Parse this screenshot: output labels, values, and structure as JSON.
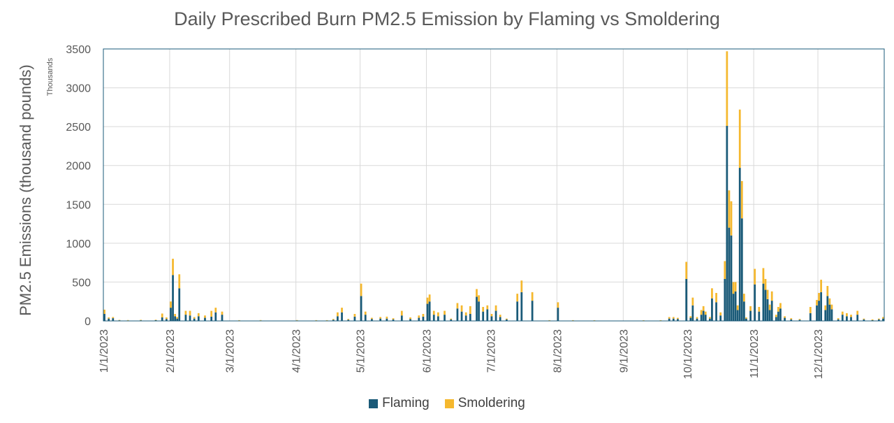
{
  "chart_data": {
    "type": "bar",
    "stacked": true,
    "title": "Daily Prescribed Burn PM2.5 Emission by Flaming vs Smoldering",
    "ylabel": "PM2.5 Emissions (thousand pounds)",
    "ylabel_units": "Thousands",
    "xlabel": "",
    "ylim": [
      0,
      3500
    ],
    "yticks": [
      0,
      500,
      1000,
      1500,
      2000,
      2500,
      3000,
      3500
    ],
    "xlim": [
      "2023-01-01",
      "2023-12-31"
    ],
    "xticks": [
      "1/1/2023",
      "2/1/2023",
      "3/1/2023",
      "4/1/2023",
      "5/1/2023",
      "6/1/2023",
      "7/1/2023",
      "8/1/2023",
      "9/1/2023",
      "10/1/2023",
      "11/1/2023",
      "12/1/2023"
    ],
    "grid": true,
    "legend_position": "bottom",
    "series": [
      {
        "name": "Flaming",
        "color": "#1a5a78",
        "points": [
          [
            "2023-01-01",
            90
          ],
          [
            "2023-01-03",
            30
          ],
          [
            "2023-01-05",
            35
          ],
          [
            "2023-01-08",
            8
          ],
          [
            "2023-01-12",
            6
          ],
          [
            "2023-01-18",
            8
          ],
          [
            "2023-01-25",
            10
          ],
          [
            "2023-01-28",
            45
          ],
          [
            "2023-01-30",
            25
          ],
          [
            "2023-02-01",
            170
          ],
          [
            "2023-02-02",
            590
          ],
          [
            "2023-02-03",
            60
          ],
          [
            "2023-02-04",
            30
          ],
          [
            "2023-02-05",
            420
          ],
          [
            "2023-02-08",
            80
          ],
          [
            "2023-02-10",
            70
          ],
          [
            "2023-02-12",
            30
          ],
          [
            "2023-02-14",
            60
          ],
          [
            "2023-02-17",
            40
          ],
          [
            "2023-02-20",
            55
          ],
          [
            "2023-02-22",
            110
          ],
          [
            "2023-02-25",
            80
          ],
          [
            "2023-03-05",
            5
          ],
          [
            "2023-03-15",
            6
          ],
          [
            "2023-04-01",
            6
          ],
          [
            "2023-04-10",
            5
          ],
          [
            "2023-04-15",
            5
          ],
          [
            "2023-04-18",
            15
          ],
          [
            "2023-04-20",
            60
          ],
          [
            "2023-04-22",
            110
          ],
          [
            "2023-04-25",
            15
          ],
          [
            "2023-04-28",
            55
          ],
          [
            "2023-05-01",
            320
          ],
          [
            "2023-05-03",
            80
          ],
          [
            "2023-05-06",
            25
          ],
          [
            "2023-05-10",
            30
          ],
          [
            "2023-05-13",
            30
          ],
          [
            "2023-05-16",
            20
          ],
          [
            "2023-05-20",
            70
          ],
          [
            "2023-05-24",
            25
          ],
          [
            "2023-05-28",
            40
          ],
          [
            "2023-05-30",
            55
          ],
          [
            "2023-06-01",
            220
          ],
          [
            "2023-06-02",
            250
          ],
          [
            "2023-06-04",
            80
          ],
          [
            "2023-06-06",
            60
          ],
          [
            "2023-06-09",
            80
          ],
          [
            "2023-06-12",
            20
          ],
          [
            "2023-06-15",
            160
          ],
          [
            "2023-06-17",
            120
          ],
          [
            "2023-06-19",
            70
          ],
          [
            "2023-06-21",
            90
          ],
          [
            "2023-06-24",
            310
          ],
          [
            "2023-06-25",
            250
          ],
          [
            "2023-06-27",
            120
          ],
          [
            "2023-06-29",
            150
          ],
          [
            "2023-07-01",
            60
          ],
          [
            "2023-07-03",
            130
          ],
          [
            "2023-07-05",
            50
          ],
          [
            "2023-07-08",
            20
          ],
          [
            "2023-07-13",
            250
          ],
          [
            "2023-07-15",
            370
          ],
          [
            "2023-07-20",
            260
          ],
          [
            "2023-07-28",
            5
          ],
          [
            "2023-08-01",
            170
          ],
          [
            "2023-08-08",
            5
          ],
          [
            "2023-08-18",
            4
          ],
          [
            "2023-09-10",
            4
          ],
          [
            "2023-09-18",
            5
          ],
          [
            "2023-09-22",
            30
          ],
          [
            "2023-09-24",
            30
          ],
          [
            "2023-09-26",
            25
          ],
          [
            "2023-09-30",
            540
          ],
          [
            "2023-10-02",
            40
          ],
          [
            "2023-10-03",
            200
          ],
          [
            "2023-10-05",
            30
          ],
          [
            "2023-10-07",
            80
          ],
          [
            "2023-10-08",
            130
          ],
          [
            "2023-10-09",
            80
          ],
          [
            "2023-10-11",
            30
          ],
          [
            "2023-10-12",
            290
          ],
          [
            "2023-10-14",
            240
          ],
          [
            "2023-10-16",
            70
          ],
          [
            "2023-10-18",
            540
          ],
          [
            "2023-10-19",
            2510
          ],
          [
            "2023-10-20",
            1200
          ],
          [
            "2023-10-21",
            1100
          ],
          [
            "2023-10-22",
            350
          ],
          [
            "2023-10-23",
            380
          ],
          [
            "2023-10-24",
            140
          ],
          [
            "2023-10-25",
            1970
          ],
          [
            "2023-10-26",
            1320
          ],
          [
            "2023-10-27",
            250
          ],
          [
            "2023-10-28",
            30
          ],
          [
            "2023-10-30",
            130
          ],
          [
            "2023-11-01",
            470
          ],
          [
            "2023-11-03",
            120
          ],
          [
            "2023-11-05",
            480
          ],
          [
            "2023-11-06",
            400
          ],
          [
            "2023-11-07",
            280
          ],
          [
            "2023-11-08",
            140
          ],
          [
            "2023-11-09",
            260
          ],
          [
            "2023-11-11",
            50
          ],
          [
            "2023-11-12",
            120
          ],
          [
            "2023-11-13",
            160
          ],
          [
            "2023-11-15",
            40
          ],
          [
            "2023-11-18",
            20
          ],
          [
            "2023-11-22",
            15
          ],
          [
            "2023-11-27",
            100
          ],
          [
            "2023-11-30",
            200
          ],
          [
            "2023-12-01",
            260
          ],
          [
            "2023-12-02",
            370
          ],
          [
            "2023-12-04",
            140
          ],
          [
            "2023-12-05",
            320
          ],
          [
            "2023-12-06",
            210
          ],
          [
            "2023-12-07",
            150
          ],
          [
            "2023-12-10",
            20
          ],
          [
            "2023-12-12",
            80
          ],
          [
            "2023-12-14",
            60
          ],
          [
            "2023-12-16",
            50
          ],
          [
            "2023-12-19",
            80
          ],
          [
            "2023-12-22",
            20
          ],
          [
            "2023-12-26",
            10
          ],
          [
            "2023-12-29",
            20
          ],
          [
            "2023-12-31",
            30
          ]
        ]
      },
      {
        "name": "Smoldering",
        "color": "#f5b82e",
        "points": [
          [
            "2023-01-01",
            55
          ],
          [
            "2023-01-03",
            15
          ],
          [
            "2023-01-05",
            15
          ],
          [
            "2023-01-08",
            5
          ],
          [
            "2023-01-12",
            5
          ],
          [
            "2023-01-18",
            6
          ],
          [
            "2023-01-25",
            6
          ],
          [
            "2023-01-28",
            50
          ],
          [
            "2023-01-30",
            20
          ],
          [
            "2023-02-01",
            80
          ],
          [
            "2023-02-02",
            210
          ],
          [
            "2023-02-03",
            30
          ],
          [
            "2023-02-04",
            20
          ],
          [
            "2023-02-05",
            180
          ],
          [
            "2023-02-08",
            50
          ],
          [
            "2023-02-10",
            60
          ],
          [
            "2023-02-12",
            20
          ],
          [
            "2023-02-14",
            40
          ],
          [
            "2023-02-17",
            30
          ],
          [
            "2023-02-20",
            75
          ],
          [
            "2023-02-22",
            60
          ],
          [
            "2023-02-25",
            40
          ],
          [
            "2023-03-05",
            5
          ],
          [
            "2023-03-15",
            5
          ],
          [
            "2023-04-01",
            5
          ],
          [
            "2023-04-10",
            5
          ],
          [
            "2023-04-15",
            5
          ],
          [
            "2023-04-18",
            10
          ],
          [
            "2023-04-20",
            50
          ],
          [
            "2023-04-22",
            60
          ],
          [
            "2023-04-25",
            10
          ],
          [
            "2023-04-28",
            35
          ],
          [
            "2023-05-01",
            160
          ],
          [
            "2023-05-03",
            40
          ],
          [
            "2023-05-06",
            15
          ],
          [
            "2023-05-10",
            20
          ],
          [
            "2023-05-13",
            25
          ],
          [
            "2023-05-16",
            15
          ],
          [
            "2023-05-20",
            60
          ],
          [
            "2023-05-24",
            20
          ],
          [
            "2023-05-28",
            30
          ],
          [
            "2023-05-30",
            35
          ],
          [
            "2023-06-01",
            80
          ],
          [
            "2023-06-02",
            90
          ],
          [
            "2023-06-04",
            50
          ],
          [
            "2023-06-06",
            50
          ],
          [
            "2023-06-09",
            50
          ],
          [
            "2023-06-12",
            10
          ],
          [
            "2023-06-15",
            70
          ],
          [
            "2023-06-17",
            80
          ],
          [
            "2023-06-19",
            40
          ],
          [
            "2023-06-21",
            100
          ],
          [
            "2023-06-24",
            100
          ],
          [
            "2023-06-25",
            80
          ],
          [
            "2023-06-27",
            60
          ],
          [
            "2023-06-29",
            50
          ],
          [
            "2023-07-01",
            30
          ],
          [
            "2023-07-03",
            70
          ],
          [
            "2023-07-05",
            30
          ],
          [
            "2023-07-08",
            10
          ],
          [
            "2023-07-13",
            100
          ],
          [
            "2023-07-15",
            150
          ],
          [
            "2023-07-20",
            110
          ],
          [
            "2023-07-28",
            5
          ],
          [
            "2023-08-01",
            70
          ],
          [
            "2023-08-08",
            5
          ],
          [
            "2023-08-18",
            4
          ],
          [
            "2023-09-10",
            4
          ],
          [
            "2023-09-18",
            5
          ],
          [
            "2023-09-22",
            20
          ],
          [
            "2023-09-24",
            20
          ],
          [
            "2023-09-26",
            15
          ],
          [
            "2023-09-30",
            220
          ],
          [
            "2023-10-02",
            20
          ],
          [
            "2023-10-03",
            100
          ],
          [
            "2023-10-05",
            20
          ],
          [
            "2023-10-07",
            60
          ],
          [
            "2023-10-08",
            60
          ],
          [
            "2023-10-09",
            40
          ],
          [
            "2023-10-11",
            20
          ],
          [
            "2023-10-12",
            130
          ],
          [
            "2023-10-14",
            120
          ],
          [
            "2023-10-16",
            40
          ],
          [
            "2023-10-18",
            230
          ],
          [
            "2023-10-19",
            960
          ],
          [
            "2023-10-20",
            480
          ],
          [
            "2023-10-21",
            440
          ],
          [
            "2023-10-22",
            150
          ],
          [
            "2023-10-23",
            120
          ],
          [
            "2023-10-24",
            60
          ],
          [
            "2023-10-25",
            750
          ],
          [
            "2023-10-26",
            480
          ],
          [
            "2023-10-27",
            100
          ],
          [
            "2023-10-28",
            15
          ],
          [
            "2023-10-30",
            60
          ],
          [
            "2023-11-01",
            200
          ],
          [
            "2023-11-03",
            60
          ],
          [
            "2023-11-05",
            200
          ],
          [
            "2023-11-06",
            140
          ],
          [
            "2023-11-07",
            120
          ],
          [
            "2023-11-08",
            70
          ],
          [
            "2023-11-09",
            120
          ],
          [
            "2023-11-11",
            30
          ],
          [
            "2023-11-12",
            60
          ],
          [
            "2023-11-13",
            70
          ],
          [
            "2023-11-15",
            20
          ],
          [
            "2023-11-18",
            15
          ],
          [
            "2023-11-22",
            10
          ],
          [
            "2023-11-27",
            80
          ],
          [
            "2023-11-30",
            70
          ],
          [
            "2023-12-01",
            100
          ],
          [
            "2023-12-02",
            160
          ],
          [
            "2023-12-04",
            60
          ],
          [
            "2023-12-05",
            130
          ],
          [
            "2023-12-06",
            80
          ],
          [
            "2023-12-07",
            60
          ],
          [
            "2023-12-10",
            15
          ],
          [
            "2023-12-12",
            40
          ],
          [
            "2023-12-14",
            40
          ],
          [
            "2023-12-16",
            30
          ],
          [
            "2023-12-19",
            50
          ],
          [
            "2023-12-22",
            10
          ],
          [
            "2023-12-26",
            10
          ],
          [
            "2023-12-29",
            10
          ],
          [
            "2023-12-31",
            20
          ]
        ]
      }
    ]
  }
}
